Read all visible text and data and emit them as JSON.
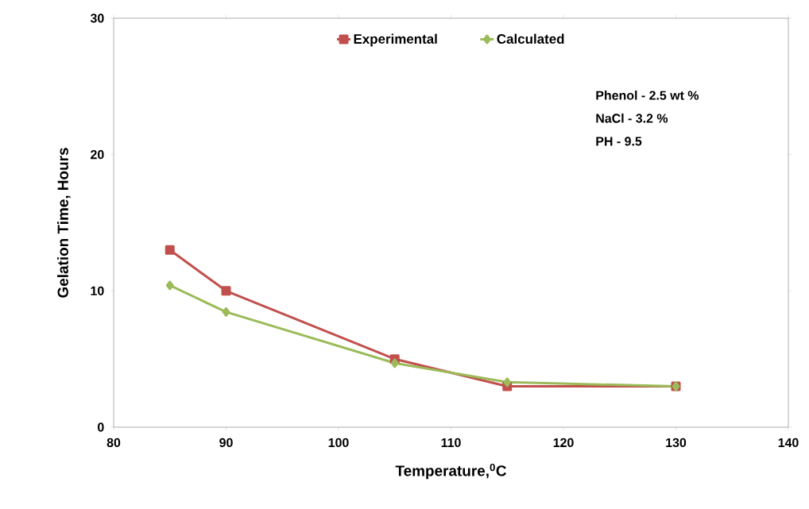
{
  "chart_data": {
    "type": "line",
    "xlabel": "Temperature,$^{0}$C",
    "ylabel": "Gelation Time, Hours",
    "x": [
      85,
      90,
      105,
      115,
      130
    ],
    "series": [
      {
        "name": "Experimental",
        "color": "#c0504d",
        "marker": "square",
        "values": [
          13.0,
          10.0,
          5.0,
          3.0,
          3.0
        ]
      },
      {
        "name": "Calculated",
        "color": "#9bbb59",
        "marker": "diamond",
        "values": [
          10.4,
          8.45,
          4.7,
          3.3,
          3.0
        ]
      }
    ],
    "xlim": [
      80,
      140
    ],
    "ylim": [
      0,
      30
    ],
    "xticks": [
      80,
      90,
      100,
      110,
      120,
      130,
      140
    ],
    "yticks": [
      0,
      10,
      20,
      30
    ],
    "legend": "top",
    "grid": false,
    "line_style": "solid",
    "annotations": [
      "Phenol - 2.5 wt %",
      "NaCl - 3.2 %",
      "PH - 9.5"
    ]
  }
}
